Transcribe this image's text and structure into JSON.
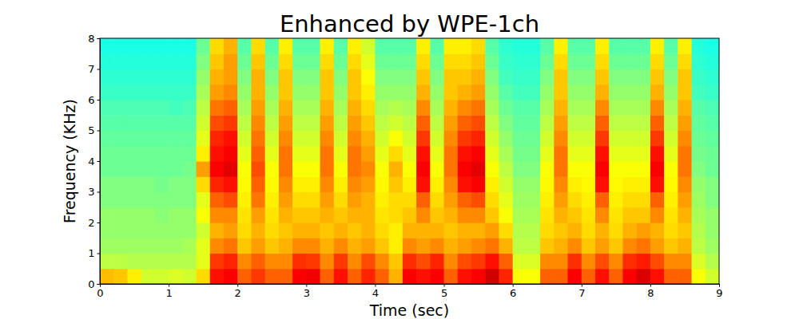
{
  "chart_data": {
    "type": "heatmap",
    "title": "Enhanced by WPE-1ch",
    "x_label": "Time (sec)",
    "y_label": "Frequency (KHz)",
    "xlim": [
      0,
      9
    ],
    "xticks": [
      0,
      1,
      2,
      3,
      4,
      5,
      6,
      7,
      8,
      9
    ],
    "ylim": [
      0,
      8
    ],
    "yticks": [
      0,
      1,
      2,
      3,
      4,
      5,
      6,
      7,
      8
    ],
    "zlim": [
      0,
      10
    ],
    "x_bins": [
      0,
      0.2,
      0.4,
      0.6,
      0.8,
      1.0,
      1.2,
      1.4,
      1.6,
      1.8,
      2.0,
      2.2,
      2.4,
      2.6,
      2.8,
      3.0,
      3.2,
      3.4,
      3.6,
      3.8,
      4.0,
      4.2,
      4.4,
      4.6,
      4.8,
      5.0,
      5.2,
      5.4,
      5.6,
      5.8,
      6.0,
      6.2,
      6.4,
      6.6,
      6.8,
      7.0,
      7.2,
      7.4,
      7.6,
      7.8,
      8.0,
      8.2,
      8.4,
      8.6,
      8.8,
      9.0
    ],
    "y_bins": [
      0,
      0.5,
      1.0,
      1.5,
      2.0,
      2.5,
      3.0,
      3.5,
      4.0,
      4.5,
      5.0,
      5.5,
      6.0,
      6.5,
      7.0,
      7.5,
      8.0
    ],
    "z": [
      [
        6.9,
        5.6,
        5.3,
        5.2,
        5.2,
        5.0,
        5.0,
        4.8,
        4.8,
        4.7,
        4.6,
        4.5,
        4.3,
        4.2,
        4.1,
        4.0
      ],
      [
        6.8,
        5.6,
        5.3,
        5.2,
        5.2,
        5.0,
        5.0,
        4.8,
        4.8,
        4.7,
        4.6,
        4.5,
        4.3,
        4.2,
        4.1,
        4.0
      ],
      [
        6.4,
        5.5,
        5.3,
        5.2,
        5.2,
        5.0,
        5.0,
        4.8,
        4.8,
        4.7,
        4.6,
        4.5,
        4.3,
        4.2,
        4.1,
        4.0
      ],
      [
        5.8,
        5.5,
        5.3,
        5.2,
        5.2,
        5.0,
        5.0,
        4.8,
        4.8,
        4.7,
        4.6,
        4.5,
        4.3,
        4.2,
        4.1,
        4.0
      ],
      [
        5.8,
        5.5,
        5.3,
        5.2,
        5.1,
        5.0,
        4.9,
        4.8,
        4.8,
        4.7,
        4.6,
        4.5,
        4.3,
        4.2,
        4.1,
        4.0
      ],
      [
        5.9,
        5.5,
        5.3,
        5.2,
        5.2,
        5.0,
        5.0,
        4.8,
        4.8,
        4.7,
        4.6,
        4.4,
        4.3,
        4.2,
        4.1,
        4.0
      ],
      [
        5.8,
        5.5,
        5.4,
        5.2,
        5.2,
        5.0,
        5.0,
        4.9,
        4.8,
        4.7,
        4.6,
        4.5,
        4.3,
        4.2,
        4.1,
        4.0
      ],
      [
        6.6,
        6.0,
        6.0,
        5.8,
        6.2,
        6.0,
        6.6,
        7.2,
        6.4,
        6.0,
        5.8,
        5.6,
        5.4,
        5.2,
        5.0,
        4.8
      ],
      [
        8.6,
        8.2,
        7.4,
        7.0,
        7.4,
        7.8,
        8.4,
        8.8,
        8.6,
        8.4,
        8.0,
        7.6,
        7.2,
        7.0,
        6.8,
        6.6
      ],
      [
        8.8,
        8.4,
        7.6,
        7.2,
        7.4,
        8.0,
        8.6,
        9.0,
        8.8,
        8.6,
        8.2,
        7.8,
        7.4,
        7.2,
        7.2,
        7.0
      ],
      [
        7.8,
        7.4,
        6.8,
        6.6,
        6.5,
        6.4,
        6.3,
        6.2,
        6.0,
        5.8,
        5.6,
        5.4,
        5.2,
        5.0,
        4.8,
        4.6
      ],
      [
        8.2,
        7.8,
        7.2,
        7.0,
        7.2,
        7.6,
        7.8,
        8.0,
        7.8,
        7.6,
        7.4,
        7.2,
        7.0,
        7.0,
        6.8,
        6.6
      ],
      [
        7.8,
        7.4,
        6.8,
        6.6,
        6.5,
        6.4,
        6.3,
        6.2,
        6.0,
        5.8,
        5.6,
        5.4,
        5.2,
        5.0,
        4.8,
        4.6
      ],
      [
        7.8,
        7.4,
        7.0,
        6.8,
        7.0,
        7.2,
        7.4,
        7.6,
        7.6,
        7.4,
        7.2,
        7.0,
        6.8,
        6.8,
        6.6,
        6.4
      ],
      [
        8.8,
        8.3,
        7.4,
        7.0,
        6.8,
        6.6,
        6.4,
        6.2,
        6.0,
        5.8,
        5.6,
        5.4,
        5.2,
        5.0,
        4.8,
        4.6
      ],
      [
        8.9,
        8.2,
        7.4,
        7.0,
        6.8,
        6.6,
        6.4,
        6.2,
        6.0,
        5.8,
        5.6,
        5.4,
        5.2,
        5.0,
        4.8,
        4.6
      ],
      [
        7.8,
        7.4,
        7.0,
        6.8,
        7.0,
        7.2,
        7.4,
        7.6,
        7.6,
        7.4,
        7.2,
        7.0,
        6.8,
        6.8,
        6.6,
        6.4
      ],
      [
        8.6,
        8.2,
        7.4,
        7.0,
        6.8,
        6.6,
        6.4,
        6.2,
        6.0,
        5.8,
        5.6,
        5.4,
        5.2,
        5.0,
        4.8,
        4.6
      ],
      [
        7.8,
        7.4,
        7.0,
        6.8,
        7.0,
        7.2,
        7.4,
        7.6,
        7.6,
        7.4,
        7.2,
        7.0,
        6.8,
        6.8,
        6.6,
        6.4
      ],
      [
        8.4,
        8.0,
        7.2,
        7.0,
        7.0,
        7.0,
        7.2,
        7.4,
        7.2,
        7.0,
        6.8,
        6.6,
        6.4,
        6.2,
        6.0,
        5.8
      ],
      [
        7.8,
        7.4,
        6.8,
        6.6,
        6.5,
        6.4,
        6.3,
        6.2,
        6.0,
        5.8,
        5.6,
        5.4,
        5.2,
        5.0,
        4.8,
        4.6
      ],
      [
        7.0,
        6.8,
        6.4,
        6.4,
        6.6,
        6.6,
        6.8,
        7.0,
        6.6,
        6.2,
        5.8,
        5.5,
        5.2,
        5.0,
        4.8,
        4.6
      ],
      [
        8.8,
        8.3,
        7.4,
        7.0,
        6.8,
        6.6,
        6.4,
        6.2,
        6.0,
        5.8,
        5.6,
        5.4,
        5.2,
        5.0,
        4.8,
        4.6
      ],
      [
        8.6,
        8.0,
        7.2,
        7.0,
        7.4,
        7.8,
        8.6,
        8.8,
        8.6,
        8.2,
        7.8,
        7.4,
        7.0,
        6.8,
        6.6,
        6.4
      ],
      [
        8.8,
        8.4,
        7.4,
        7.0,
        6.8,
        6.6,
        6.4,
        6.2,
        6.0,
        5.8,
        5.6,
        5.4,
        5.2,
        5.0,
        4.8,
        4.6
      ],
      [
        7.8,
        7.4,
        7.0,
        6.8,
        7.0,
        7.2,
        7.4,
        7.6,
        7.6,
        7.4,
        7.2,
        7.0,
        6.8,
        6.8,
        6.6,
        6.4
      ],
      [
        8.6,
        8.0,
        7.2,
        7.0,
        7.4,
        7.8,
        8.6,
        8.8,
        8.6,
        8.2,
        7.8,
        7.4,
        7.0,
        6.8,
        6.6,
        6.4
      ],
      [
        8.8,
        8.2,
        7.4,
        7.0,
        7.4,
        8.0,
        8.8,
        9.0,
        8.8,
        8.4,
        8.0,
        7.6,
        7.2,
        7.0,
        6.8,
        6.6
      ],
      [
        9.2,
        8.6,
        7.6,
        7.2,
        6.8,
        6.6,
        6.4,
        6.2,
        6.0,
        5.8,
        5.6,
        5.4,
        5.2,
        5.0,
        4.8,
        4.6
      ],
      [
        8.4,
        7.8,
        7.0,
        6.6,
        6.2,
        6.0,
        5.8,
        5.6,
        5.4,
        5.2,
        5.0,
        4.8,
        4.6,
        4.4,
        4.3,
        4.2
      ],
      [
        6.2,
        5.9,
        5.6,
        5.5,
        5.4,
        5.3,
        5.2,
        5.0,
        4.9,
        4.8,
        4.7,
        4.6,
        4.4,
        4.3,
        4.2,
        4.1
      ],
      [
        6.2,
        5.9,
        5.6,
        5.5,
        5.4,
        5.3,
        5.2,
        5.0,
        4.9,
        4.8,
        4.7,
        4.6,
        4.4,
        4.3,
        4.2,
        4.1
      ],
      [
        7.8,
        7.4,
        6.8,
        6.6,
        6.5,
        6.4,
        6.3,
        6.2,
        6.0,
        5.8,
        5.6,
        5.4,
        5.2,
        5.0,
        4.8,
        4.6
      ],
      [
        7.8,
        7.4,
        7.0,
        6.8,
        7.0,
        7.2,
        7.4,
        7.6,
        7.6,
        7.4,
        7.2,
        7.0,
        6.8,
        6.8,
        6.6,
        6.4
      ],
      [
        8.8,
        8.3,
        7.4,
        7.0,
        6.8,
        6.6,
        6.4,
        6.2,
        6.0,
        5.8,
        5.6,
        5.4,
        5.2,
        5.0,
        4.8,
        4.6
      ],
      [
        7.8,
        7.4,
        6.8,
        6.6,
        6.5,
        6.4,
        6.3,
        6.2,
        6.0,
        5.8,
        5.6,
        5.4,
        5.2,
        5.0,
        4.8,
        4.6
      ],
      [
        8.6,
        8.0,
        7.2,
        7.0,
        7.4,
        7.8,
        8.6,
        8.8,
        8.6,
        8.2,
        7.8,
        7.4,
        7.0,
        6.8,
        6.6,
        6.4
      ],
      [
        7.8,
        7.4,
        6.8,
        6.6,
        6.5,
        6.4,
        6.3,
        6.2,
        6.0,
        5.8,
        5.6,
        5.4,
        5.2,
        5.0,
        4.8,
        4.6
      ],
      [
        8.8,
        8.3,
        7.4,
        7.0,
        6.8,
        6.6,
        6.4,
        6.2,
        6.0,
        5.8,
        5.6,
        5.4,
        5.2,
        5.0,
        4.8,
        4.6
      ],
      [
        9.1,
        8.5,
        7.6,
        7.2,
        6.8,
        6.6,
        6.4,
        6.2,
        6.0,
        5.8,
        5.6,
        5.4,
        5.2,
        5.0,
        4.8,
        4.6
      ],
      [
        8.6,
        8.0,
        7.2,
        7.0,
        7.4,
        7.8,
        8.6,
        8.8,
        8.6,
        8.2,
        7.8,
        7.4,
        7.0,
        6.8,
        6.6,
        6.4
      ],
      [
        7.8,
        7.4,
        6.8,
        6.6,
        6.5,
        6.4,
        6.3,
        6.2,
        6.0,
        5.8,
        5.6,
        5.4,
        5.2,
        5.0,
        4.8,
        4.6
      ],
      [
        7.8,
        7.4,
        7.0,
        6.8,
        7.0,
        7.2,
        7.4,
        7.6,
        7.6,
        7.4,
        7.2,
        7.0,
        6.8,
        6.8,
        6.6,
        6.4
      ],
      [
        6.2,
        5.9,
        5.6,
        5.5,
        5.4,
        5.3,
        5.2,
        5.0,
        4.9,
        4.8,
        4.7,
        4.6,
        4.4,
        4.3,
        4.2,
        4.1
      ],
      [
        5.8,
        5.5,
        5.3,
        5.2,
        5.2,
        5.0,
        5.0,
        4.8,
        4.8,
        4.7,
        4.6,
        4.5,
        4.3,
        4.2,
        4.1,
        4.0
      ]
    ]
  }
}
